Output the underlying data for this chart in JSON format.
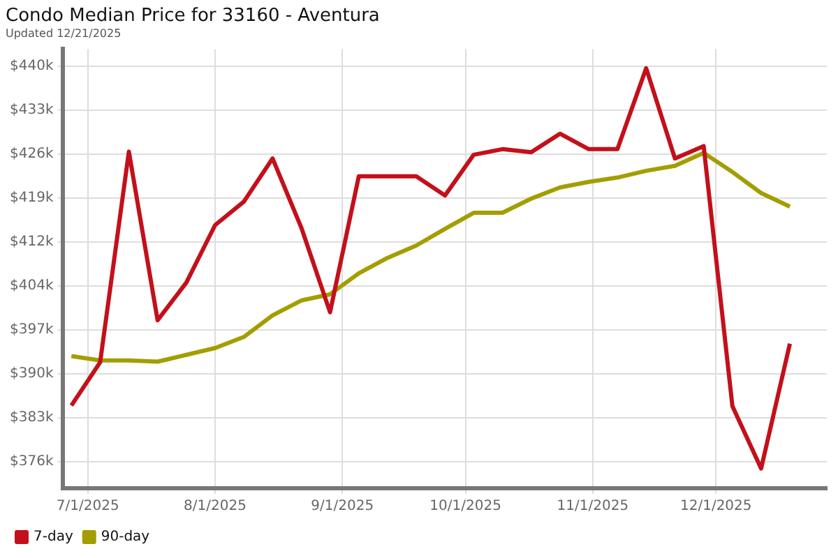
{
  "chart_data": {
    "type": "line",
    "title": "Condo Median Price for 33160 - Aventura",
    "subtitle": "Updated 12/21/2025",
    "x": [
      "2025-06-27",
      "2025-07-04",
      "2025-07-11",
      "2025-07-18",
      "2025-07-25",
      "2025-08-01",
      "2025-08-08",
      "2025-08-15",
      "2025-08-22",
      "2025-08-29",
      "2025-09-05",
      "2025-09-12",
      "2025-09-19",
      "2025-09-26",
      "2025-10-03",
      "2025-10-10",
      "2025-10-17",
      "2025-10-24",
      "2025-10-31",
      "2025-11-07",
      "2025-11-14",
      "2025-11-21",
      "2025-11-28",
      "2025-12-05",
      "2025-12-12",
      "2025-12-19"
    ],
    "series": [
      {
        "name": "7-day",
        "color": "#c3101a",
        "values": [
          385.1,
          392.1,
          426.2,
          398.9,
          405.0,
          414.3,
          418.1,
          425.1,
          413.9,
          400.2,
          422.2,
          422.2,
          422.2,
          419.1,
          425.7,
          426.6,
          426.1,
          429.1,
          426.6,
          426.6,
          439.7,
          425.1,
          427.1,
          385.0,
          374.9,
          395.1
        ]
      },
      {
        "name": "90-day",
        "color": "#a39e00",
        "values": [
          393.1,
          392.4,
          392.4,
          392.2,
          393.3,
          394.4,
          396.2,
          399.7,
          402.1,
          403.1,
          406.5,
          409.0,
          411.0,
          413.7,
          416.3,
          416.3,
          418.6,
          420.4,
          421.3,
          422.0,
          423.1,
          423.9,
          426.0,
          422.9,
          419.5,
          417.3
        ]
      }
    ],
    "xlim": [
      "2025-06-25",
      "2025-12-28"
    ],
    "xticks": [
      {
        "value": "2025-07-01",
        "label": "7/1/2025"
      },
      {
        "value": "2025-08-01",
        "label": "8/1/2025"
      },
      {
        "value": "2025-09-01",
        "label": "9/1/2025"
      },
      {
        "value": "2025-10-01",
        "label": "10/1/2025"
      },
      {
        "value": "2025-11-01",
        "label": "11/1/2025"
      },
      {
        "value": "2025-12-01",
        "label": "12/1/2025"
      }
    ],
    "ylim": [
      371.7,
      442.8
    ],
    "yticks": [
      {
        "value": 376,
        "label": "$376k"
      },
      {
        "value": 383.11,
        "label": "$383k"
      },
      {
        "value": 390.22,
        "label": "$390k"
      },
      {
        "value": 397.33,
        "label": "$397k"
      },
      {
        "value": 404.44,
        "label": "$404k"
      },
      {
        "value": 411.56,
        "label": "$412k"
      },
      {
        "value": 418.67,
        "label": "$419k"
      },
      {
        "value": 425.78,
        "label": "$426k"
      },
      {
        "value": 432.89,
        "label": "$433k"
      },
      {
        "value": 440,
        "label": "$440k"
      }
    ],
    "grid": true,
    "legend": "bottom left",
    "marker": "none",
    "line_style": "solid"
  }
}
